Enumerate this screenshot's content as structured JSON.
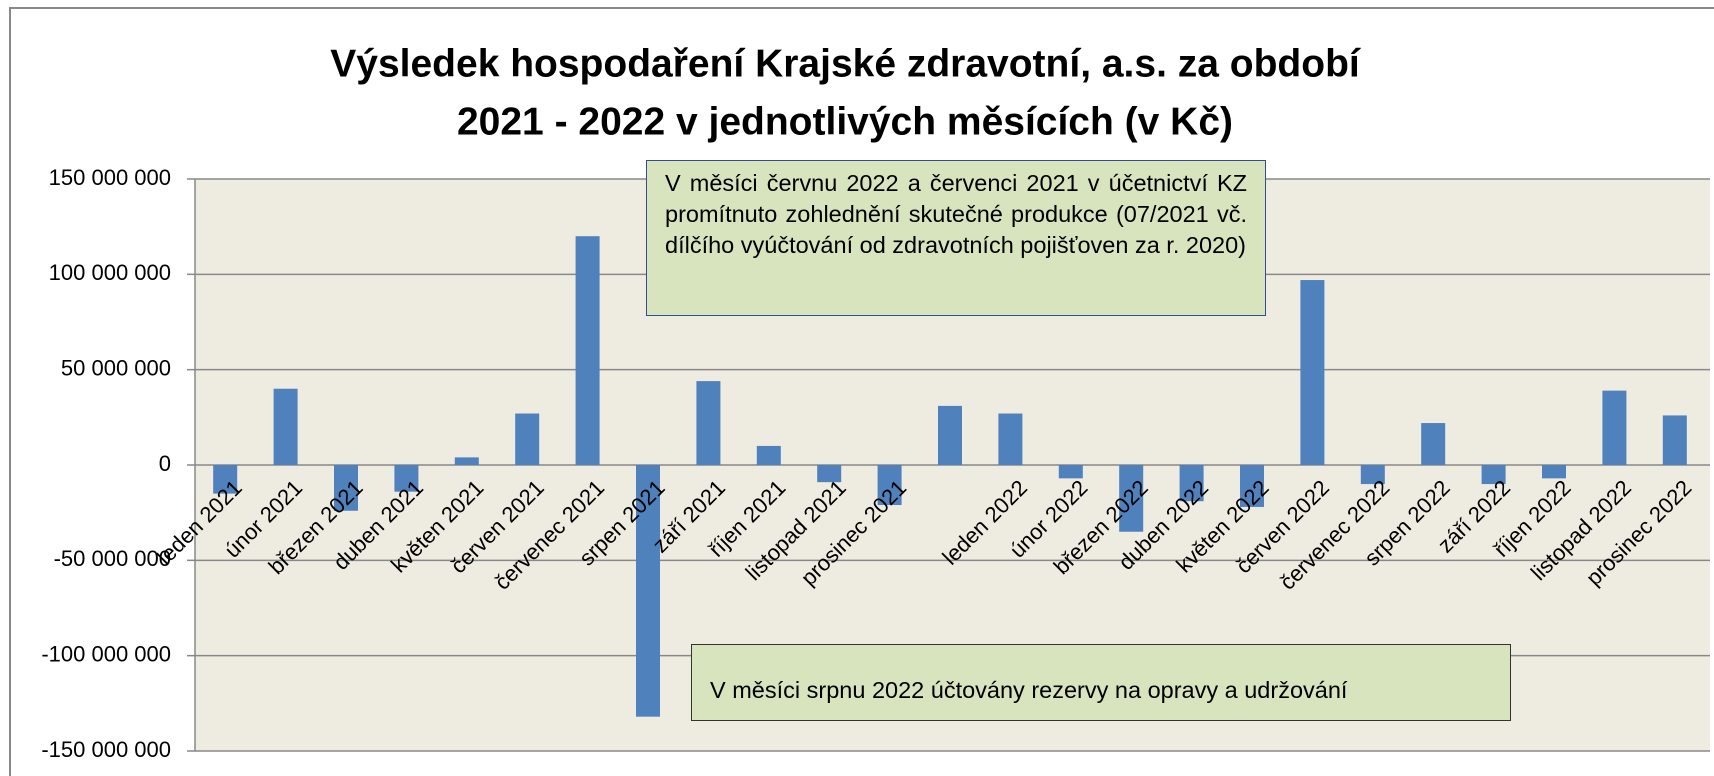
{
  "chart_data": {
    "type": "bar",
    "title": [
      "Výsledek hospodaření Krajské zdravotní, a.s. za období",
      "2021 - 2022 v jednotlivých měsících (v Kč)"
    ],
    "categories": [
      "leden 2021",
      "únor 2021",
      "březen 2021",
      "duben 2021",
      "květen 2021",
      "červen 2021",
      "červenec 2021",
      "srpen 2021",
      "září 2021",
      "říjen 2021",
      "listopad 2021",
      "prosinec 2021",
      null,
      "leden 2022",
      "únor 2022",
      "březen 2022",
      "duben 2022",
      "květen 2022",
      "červen 2022",
      "červenec 2022",
      "srpen 2022",
      "září 2022",
      "říjen 2022",
      "listopad 2022",
      "prosinec 2022"
    ],
    "values": [
      -15000000,
      40000000,
      -24000000,
      -14000000,
      4000000,
      27000000,
      120000000,
      -132000000,
      44000000,
      10000000,
      -9000000,
      -21000000,
      31000000,
      27000000,
      -7000000,
      -35000000,
      -19000000,
      -22000000,
      97000000,
      -10000000,
      22000000,
      -10000000,
      -7000000,
      39000000,
      26000000
    ],
    "color": "#4f81bd",
    "ylim": [
      -150000000,
      150000000
    ],
    "yticks": [
      {
        "value": -150000000,
        "label": "-150 000 000"
      },
      {
        "value": -100000000,
        "label": "-100 000 000"
      },
      {
        "value": -50000000,
        "label": "-50 000 000"
      },
      0,
      {
        "value": 50000000,
        "label": "50 000 000"
      },
      {
        "value": 100000000,
        "label": "100 000 000"
      },
      {
        "value": 150000000,
        "label": "150 000 000"
      }
    ],
    "grid": true,
    "annotations": [
      "V měsíci červnu 2022 a červenci 2021 v účetnictví KZ promítnuto zohlednění skutečné produkce (07/2021 vč. dílčího vyúčtování od zdravotních pojišťoven za r. 2020)",
      "V měsíci srpnu 2022 účtovány rezervy na opravy a udržování"
    ]
  }
}
